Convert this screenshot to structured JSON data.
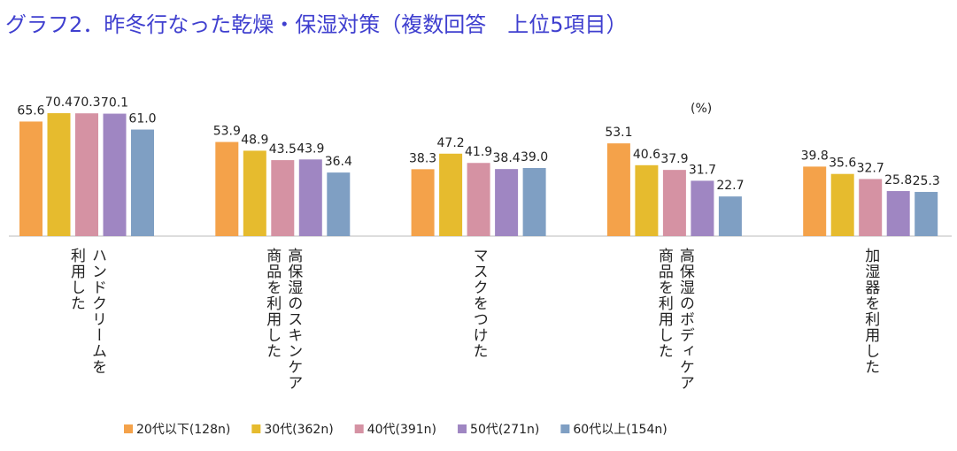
{
  "chart_data": {
    "type": "bar",
    "title": "グラフ2．昨冬行なった乾燥・保湿対策（複数回答　上位5項目）",
    "unit_label": "(%)",
    "categories": [
      "ハンドクリームを\n利用した",
      "高保湿のスキンケア\n商品を利用した",
      "マスクをつけた",
      "高保湿のボディケア\n商品を利用した",
      "加湿器を利用した"
    ],
    "ylim": [
      0,
      80
    ],
    "legend": "bottom",
    "series": [
      {
        "name": "20代以下(128n)",
        "color": "#f4a24a",
        "values": [
          65.6,
          53.9,
          38.3,
          53.1,
          39.8
        ]
      },
      {
        "name": "30代(362n)",
        "color": "#e6bb2e",
        "values": [
          70.4,
          48.9,
          47.2,
          40.6,
          35.6
        ]
      },
      {
        "name": "40代(391n)",
        "color": "#d592a3",
        "values": [
          70.3,
          43.5,
          41.9,
          37.9,
          32.7
        ]
      },
      {
        "name": "50代(271n)",
        "color": "#9f86c2",
        "values": [
          70.1,
          43.9,
          38.4,
          31.7,
          25.8
        ]
      },
      {
        "name": "60代以上(154n)",
        "color": "#7f9fc3",
        "values": [
          61,
          36.4,
          39,
          22.7,
          25.3
        ],
        "value_labels": [
          "61.0",
          "36.4",
          "39.0",
          "22.7",
          "25.3"
        ]
      }
    ]
  }
}
